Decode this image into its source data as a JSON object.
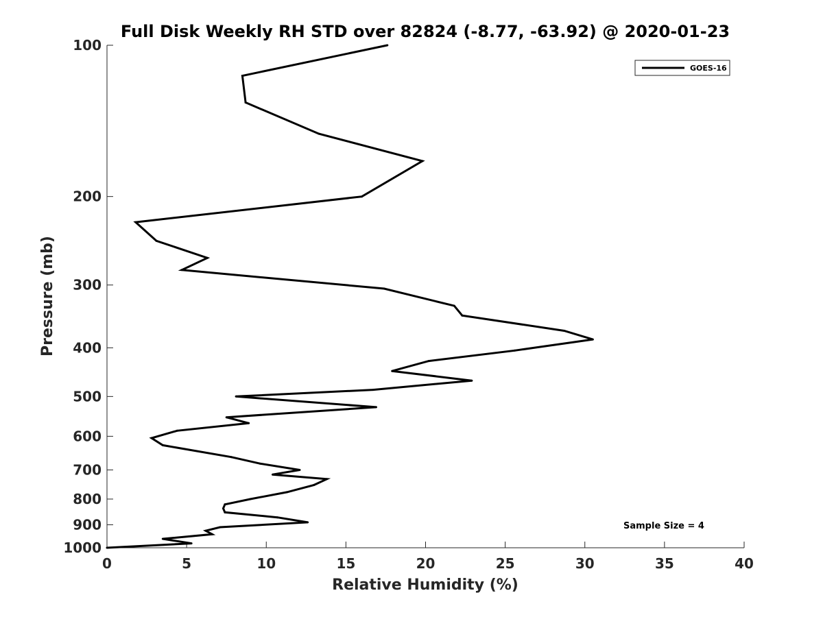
{
  "chart_data": {
    "type": "line",
    "title": "Full Disk Weekly RH STD over 82824 (-8.77, -63.92) @ 2020-01-23",
    "xlabel": "Relative Humidity (%)",
    "ylabel": "Pressure (mb)",
    "xlim": [
      0,
      40
    ],
    "ylim": [
      100,
      1000
    ],
    "yscale": "log",
    "y_reversed": true,
    "grid": false,
    "legend_position": "top-right",
    "xticks": [
      0,
      5,
      10,
      15,
      20,
      25,
      30,
      35,
      40
    ],
    "xtick_labels": [
      "0",
      "5",
      "10",
      "15",
      "20",
      "25",
      "30",
      "35",
      "40"
    ],
    "yticks": [
      100,
      200,
      300,
      400,
      500,
      600,
      700,
      800,
      900,
      1000
    ],
    "ytick_labels": [
      "100",
      "200",
      "300",
      "400",
      "500",
      "600",
      "700",
      "800",
      "900",
      "1000"
    ],
    "series": [
      {
        "name": "GOES-16",
        "color": "#000000",
        "x": [
          17.6,
          8.5,
          8.7,
          13.3,
          19.8,
          16.0,
          1.8,
          3.1,
          6.3,
          4.7,
          17.4,
          21.8,
          22.3,
          28.7,
          30.5,
          25.6,
          20.2,
          17.9,
          22.9,
          16.7,
          8.1,
          16.9,
          7.5,
          8.9,
          4.4,
          2.8,
          3.5,
          7.8,
          9.6,
          12.1,
          10.4,
          13.8,
          13.0,
          11.3,
          9.0,
          7.4,
          7.3,
          7.4,
          10.7,
          12.6,
          7.1,
          6.2,
          6.6,
          3.5,
          5.3,
          0.0
        ],
        "y": [
          100,
          115,
          130,
          150,
          170,
          200,
          225,
          245,
          265,
          280,
          305,
          330,
          345,
          370,
          385,
          405,
          425,
          445,
          465,
          485,
          500,
          525,
          550,
          565,
          585,
          605,
          625,
          660,
          680,
          700,
          715,
          730,
          750,
          775,
          800,
          820,
          835,
          850,
          870,
          890,
          910,
          925,
          940,
          960,
          980,
          1000
        ]
      }
    ],
    "annotations": [
      {
        "text": "Sample Size = 4",
        "x": 35,
        "y": 905
      }
    ]
  }
}
